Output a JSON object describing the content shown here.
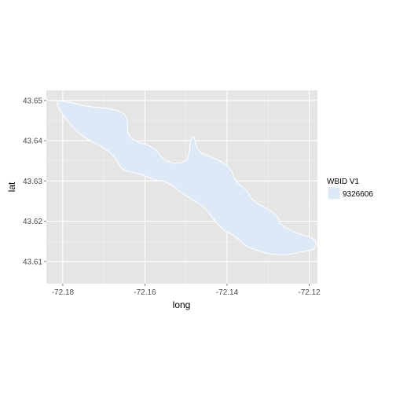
{
  "chart_data": {
    "type": "map",
    "xlabel": "long",
    "ylabel": "lat",
    "xlim": [
      -72.184,
      -72.118
    ],
    "ylim": [
      43.6045,
      43.6525
    ],
    "x_ticks": [
      {
        "value": -72.18,
        "label": "-72.18"
      },
      {
        "value": -72.16,
        "label": "-72.16"
      },
      {
        "value": -72.14,
        "label": "-72.14"
      },
      {
        "value": -72.12,
        "label": "-72.12"
      }
    ],
    "y_ticks": [
      {
        "value": 43.61,
        "label": "43.61"
      },
      {
        "value": 43.62,
        "label": "43.62"
      },
      {
        "value": 43.63,
        "label": "43.63"
      },
      {
        "value": 43.64,
        "label": "43.64"
      },
      {
        "value": 43.65,
        "label": "43.65"
      }
    ],
    "grid": true,
    "legend": {
      "title": "WBID V1",
      "position": "right",
      "entries": [
        {
          "label": "9326606",
          "color": "#dde9f6"
        }
      ]
    },
    "panel_color": "#e5e5e5",
    "grid_color": "#ffffff",
    "fill_color": "#dde9f6",
    "outline_color": "#ffffff",
    "polygon": [
      [
        -72.1813,
        43.65
      ],
      [
        -72.178,
        43.6495
      ],
      [
        -72.175,
        43.6487
      ],
      [
        -72.172,
        43.6483
      ],
      [
        -72.169,
        43.648
      ],
      [
        -72.1665,
        43.6474
      ],
      [
        -72.165,
        43.6466
      ],
      [
        -72.1644,
        43.6455
      ],
      [
        -72.1642,
        43.644
      ],
      [
        -72.1642,
        43.6425
      ],
      [
        -72.1638,
        43.6412
      ],
      [
        -72.1628,
        43.6402
      ],
      [
        -72.1612,
        43.6395
      ],
      [
        -72.159,
        43.6388
      ],
      [
        -72.1572,
        43.6376
      ],
      [
        -72.156,
        43.636
      ],
      [
        -72.1548,
        43.635
      ],
      [
        -72.153,
        43.6344
      ],
      [
        -72.151,
        43.6346
      ],
      [
        -72.1497,
        43.6353
      ],
      [
        -72.1492,
        43.6372
      ],
      [
        -72.149,
        43.6392
      ],
      [
        -72.1486,
        43.6408
      ],
      [
        -72.148,
        43.641
      ],
      [
        -72.1478,
        43.6398
      ],
      [
        -72.1472,
        43.638
      ],
      [
        -72.146,
        43.6368
      ],
      [
        -72.144,
        43.636
      ],
      [
        -72.1418,
        43.635
      ],
      [
        -72.14,
        43.6338
      ],
      [
        -72.1388,
        43.6322
      ],
      [
        -72.1382,
        43.6306
      ],
      [
        -72.1374,
        43.6294
      ],
      [
        -72.1362,
        43.6285
      ],
      [
        -72.135,
        43.6273
      ],
      [
        -72.1342,
        43.6258
      ],
      [
        -72.1328,
        43.6245
      ],
      [
        -72.1308,
        43.6234
      ],
      [
        -72.1288,
        43.6222
      ],
      [
        -72.1276,
        43.621
      ],
      [
        -72.1272,
        43.6196
      ],
      [
        -72.1258,
        43.6184
      ],
      [
        -72.1238,
        43.6174
      ],
      [
        -72.1216,
        43.6166
      ],
      [
        -72.1196,
        43.616
      ],
      [
        -72.1185,
        43.6151
      ],
      [
        -72.1182,
        43.614
      ],
      [
        -72.119,
        43.613
      ],
      [
        -72.1208,
        43.6126
      ],
      [
        -72.1228,
        43.6122
      ],
      [
        -72.125,
        43.6117
      ],
      [
        -72.1278,
        43.6117
      ],
      [
        -72.1302,
        43.612
      ],
      [
        -72.1322,
        43.6126
      ],
      [
        -72.134,
        43.6132
      ],
      [
        -72.1356,
        43.614
      ],
      [
        -72.1368,
        43.6152
      ],
      [
        -72.1385,
        43.6165
      ],
      [
        -72.1405,
        43.6176
      ],
      [
        -72.142,
        43.619
      ],
      [
        -72.1432,
        43.6205
      ],
      [
        -72.1445,
        43.6222
      ],
      [
        -72.146,
        43.6238
      ],
      [
        -72.1478,
        43.625
      ],
      [
        -72.1498,
        43.6262
      ],
      [
        -72.1518,
        43.6276
      ],
      [
        -72.1535,
        43.629
      ],
      [
        -72.1556,
        43.63
      ],
      [
        -72.1574,
        43.6302
      ],
      [
        -72.159,
        43.6308
      ],
      [
        -72.1608,
        43.6316
      ],
      [
        -72.1624,
        43.632
      ],
      [
        -72.164,
        43.6323
      ],
      [
        -72.1655,
        43.633
      ],
      [
        -72.1665,
        43.6345
      ],
      [
        -72.1676,
        43.6362
      ],
      [
        -72.169,
        43.6375
      ],
      [
        -72.1708,
        43.6386
      ],
      [
        -72.173,
        43.6398
      ],
      [
        -72.1752,
        43.6412
      ],
      [
        -72.1772,
        43.643
      ],
      [
        -72.179,
        43.6452
      ],
      [
        -72.1805,
        43.6472
      ],
      [
        -72.1813,
        43.6488
      ]
    ]
  }
}
